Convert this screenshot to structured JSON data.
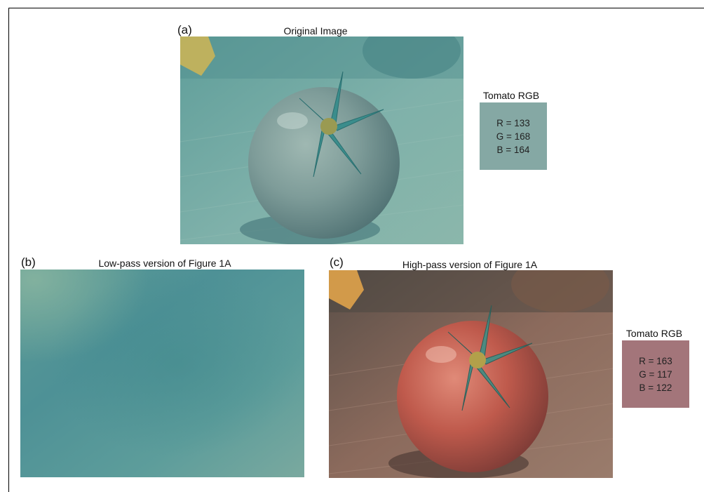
{
  "panels": {
    "a": {
      "letter": "(a)",
      "title": "Original Image",
      "rgb_label": "Tomato RGB",
      "rgb": {
        "r": "R = 133",
        "g": "G = 168",
        "b": "B = 164"
      },
      "swatch_color": "#85a8a4"
    },
    "b": {
      "letter": "(b)",
      "title": "Low-pass version of Figure 1A"
    },
    "c": {
      "letter": "(c)",
      "title": "High-pass version of Figure 1A",
      "rgb_label": "Tomato RGB",
      "rgb": {
        "r": "R = 163",
        "g": "G = 117",
        "b": "B = 122"
      },
      "swatch_color": "#a3757a"
    }
  },
  "photo_subject": "tomato-on-wooden-table"
}
